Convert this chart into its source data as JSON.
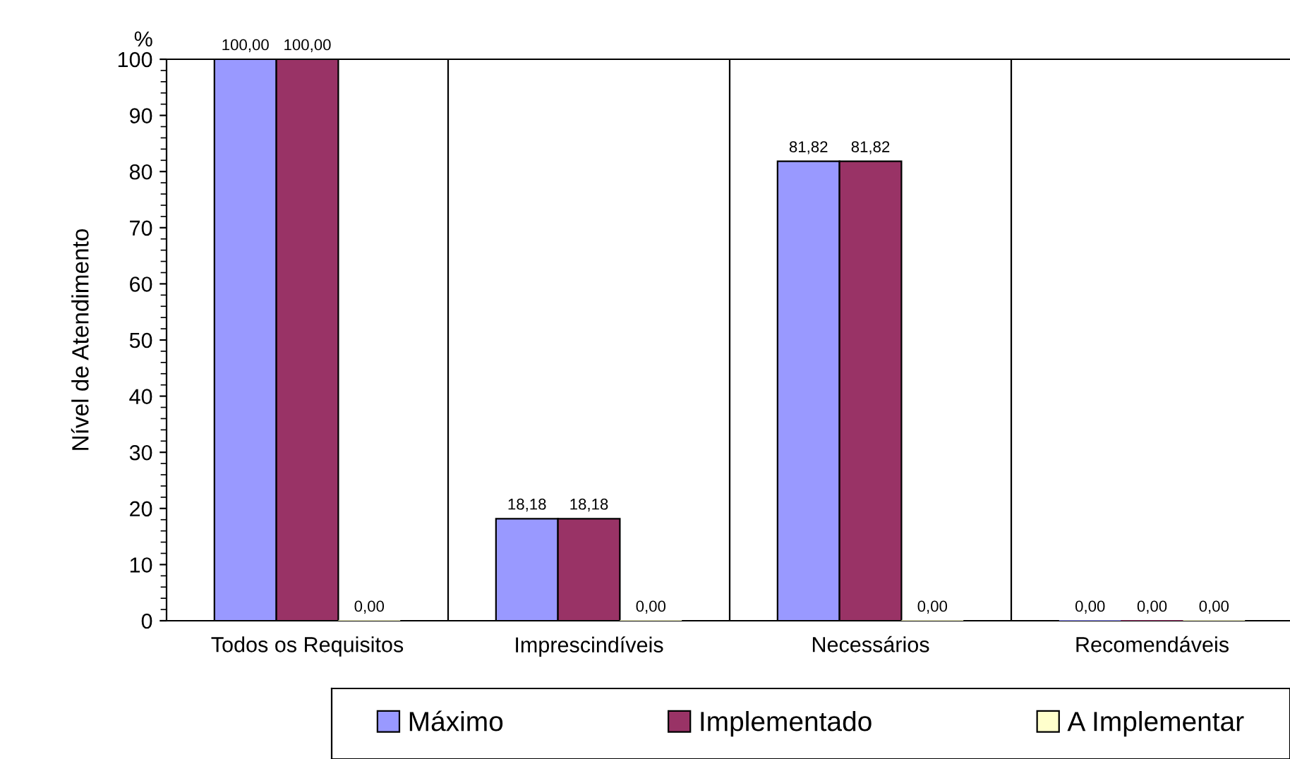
{
  "chart_data": {
    "type": "bar",
    "ylabel": "Nível de Atendimento",
    "annotations": [
      "%"
    ],
    "categories": [
      "Todos os Requisitos",
      "Imprescindíveis",
      "Necessários",
      "Recomendáveis"
    ],
    "series": [
      {
        "name": "Máximo",
        "color": "#9999ff",
        "values": [
          100,
          18.18,
          81.82,
          0
        ],
        "value_labels": [
          "100,00",
          "18,18",
          "81,82",
          "0,00"
        ]
      },
      {
        "name": "Implementado",
        "color": "#993366",
        "values": [
          100,
          18.18,
          81.82,
          0
        ],
        "value_labels": [
          "100,00",
          "18,18",
          "81,82",
          "0,00"
        ]
      },
      {
        "name": "A Implementar",
        "color": "#ffffcc",
        "values": [
          0,
          0,
          0,
          0
        ],
        "value_labels": [
          "0,00",
          "0,00",
          "0,00",
          "0,00"
        ]
      }
    ],
    "ylim": [
      0,
      100
    ],
    "yticks": [
      0,
      10,
      20,
      30,
      40,
      50,
      60,
      70,
      80,
      90,
      100
    ],
    "grid": "x",
    "legend": "bottom"
  }
}
